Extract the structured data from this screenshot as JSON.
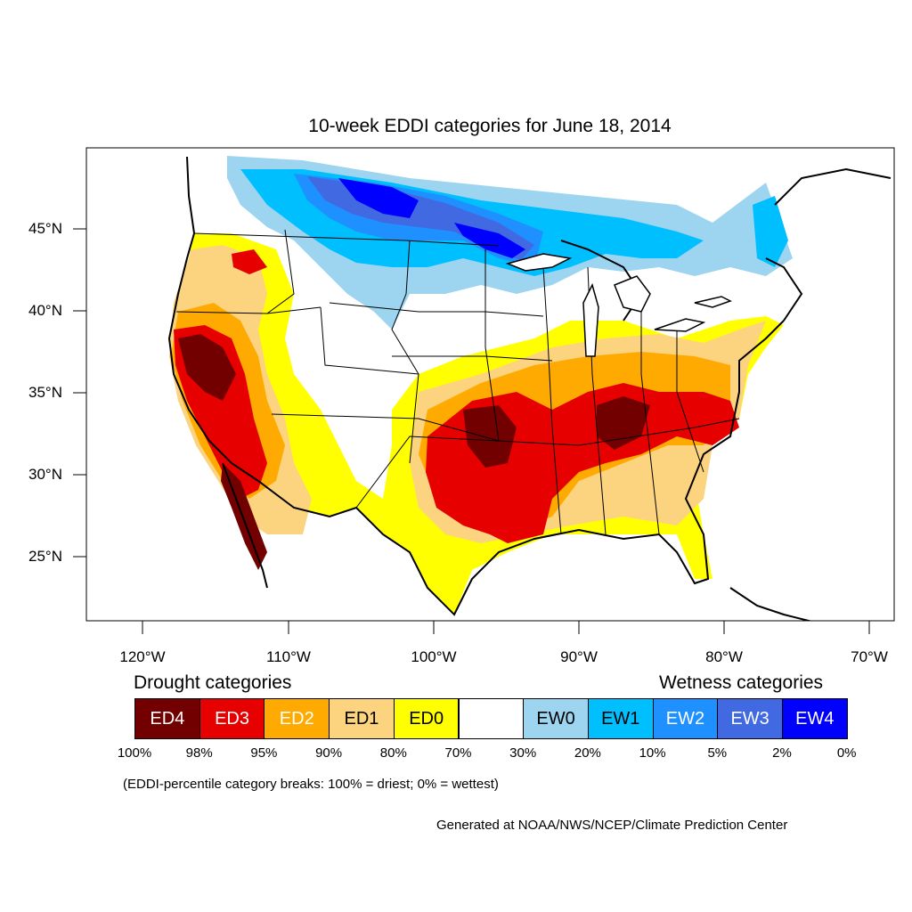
{
  "title": "10-week EDDI categories for June 18, 2014",
  "lat_ticks": [
    "45°N",
    "40°N",
    "35°N",
    "30°N",
    "25°N"
  ],
  "lon_ticks": [
    "120°W",
    "110°W",
    "100°W",
    "90°W",
    "80°W",
    "70°W"
  ],
  "legend": {
    "drought_heading": "Drought categories",
    "wetness_heading": "Wetness categories",
    "categories": [
      {
        "label": "ED4",
        "color": "#730000",
        "text_color": "#ffffff"
      },
      {
        "label": "ED3",
        "color": "#e60000",
        "text_color": "#ffffff"
      },
      {
        "label": "ED2",
        "color": "#ffaa00",
        "text_color": "#ffffff"
      },
      {
        "label": "ED1",
        "color": "#fcd37f",
        "text_color": "#000000"
      },
      {
        "label": "ED0",
        "color": "#ffff00",
        "text_color": "#000000"
      },
      {
        "label": "",
        "color": "#ffffff",
        "text_color": "#000000"
      },
      {
        "label": "EW0",
        "color": "#9dd4f0",
        "text_color": "#000000"
      },
      {
        "label": "EW1",
        "color": "#00bfff",
        "text_color": "#000000"
      },
      {
        "label": "EW2",
        "color": "#1e90ff",
        "text_color": "#ffffff"
      },
      {
        "label": "EW3",
        "color": "#4169e1",
        "text_color": "#ffffff"
      },
      {
        "label": "EW4",
        "color": "#0000ff",
        "text_color": "#ffffff"
      }
    ],
    "breaks": [
      "100%",
      "98%",
      "95%",
      "90%",
      "80%",
      "70%",
      "30%",
      "20%",
      "10%",
      "5%",
      "2%",
      "0%"
    ]
  },
  "breaks_note": "(EDDI-percentile category breaks: 100% = driest; 0% = wettest)",
  "credit": "Generated at NOAA/NWS/NCEP/Climate Prediction Center"
}
